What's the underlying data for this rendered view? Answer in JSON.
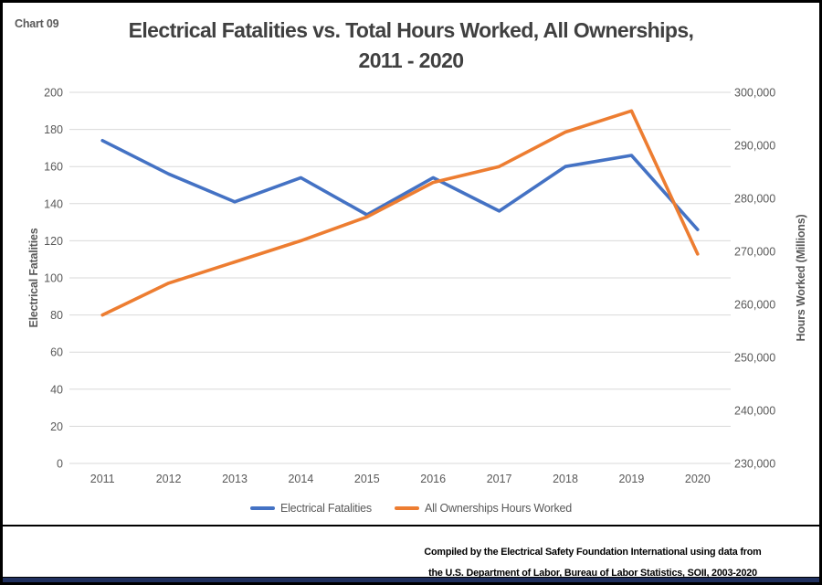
{
  "page": {
    "chart_label": "Chart 09",
    "title_line1": "Electrical Fatalities vs. Total Hours Worked, All Ownerships,",
    "title_line2": "2011 - 2020",
    "footer_line1": "Compiled by the Electrical Safety Foundation International using data from",
    "footer_line2": "the U.S. Department of Labor, Bureau of Labor Statistics, SOII, 2003-2020"
  },
  "colors": {
    "fatalities_line": "#4472C4",
    "hours_line": "#ED7D31",
    "gridline": "#D9D9D9",
    "axis_text": "#595959",
    "title_text": "#404040",
    "bottom_bar": "#20305E"
  },
  "chart_data": {
    "type": "line",
    "title": "Electrical Fatalities vs. Total Hours Worked, All Ownerships, 2011 - 2020",
    "categories": [
      "2011",
      "2012",
      "2013",
      "2014",
      "2015",
      "2016",
      "2017",
      "2018",
      "2019",
      "2020"
    ],
    "series": [
      {
        "name": "Electrical Fatalities",
        "axis": "left",
        "color": "#4472C4",
        "values": [
          174,
          156,
          141,
          154,
          134,
          154,
          136,
          160,
          166,
          126
        ]
      },
      {
        "name": "All Ownerships Hours Worked",
        "axis": "right",
        "color": "#ED7D31",
        "values": [
          258000,
          264000,
          268000,
          272000,
          276500,
          283000,
          286000,
          292500,
          296500,
          269500
        ]
      }
    ],
    "left_axis": {
      "label": "Electrical Fatalities",
      "min": 0,
      "max": 200,
      "ticks": [
        0,
        20,
        40,
        60,
        80,
        100,
        120,
        140,
        160,
        180,
        200
      ]
    },
    "right_axis": {
      "label": "Hours Worked (Millions)",
      "min": 230000,
      "max": 300000,
      "ticks": [
        230000,
        240000,
        250000,
        260000,
        270000,
        280000,
        290000,
        300000
      ]
    },
    "legend_position": "bottom",
    "grid": true
  }
}
